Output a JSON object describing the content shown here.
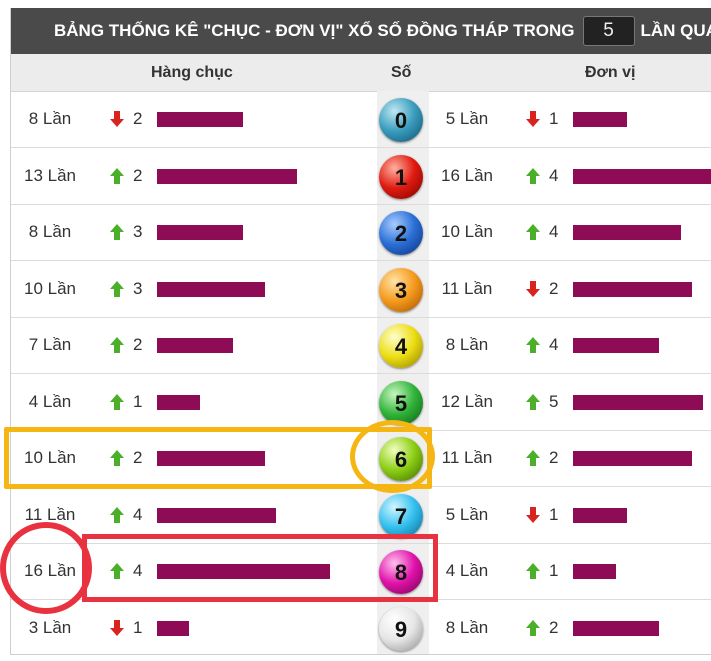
{
  "title": {
    "prefix": "BẢNG THỐNG KÊ \"CHỤC - ĐƠN VỊ\" XỔ SỐ ĐỒNG THÁP TRONG",
    "count_value": "5",
    "suffix": "LẦN QUAY"
  },
  "headers": {
    "tens": "Hàng chục",
    "digit": "Số",
    "units": "Đơn vị"
  },
  "rows": [
    {
      "digit": "0",
      "color": "teal",
      "tens": {
        "times": "8 Lần",
        "trend": "down",
        "change": "2",
        "level": 0.8
      },
      "units": {
        "times": "5 Lần",
        "trend": "down",
        "change": "1",
        "level": 0.5
      }
    },
    {
      "digit": "1",
      "color": "red",
      "tens": {
        "times": "13 Lần",
        "trend": "up",
        "change": "2",
        "level": 1.3
      },
      "units": {
        "times": "16 Lần",
        "trend": "up",
        "change": "4",
        "level": 1.6
      }
    },
    {
      "digit": "2",
      "color": "blue",
      "tens": {
        "times": "8 Lần",
        "trend": "up",
        "change": "3",
        "level": 0.8
      },
      "units": {
        "times": "10 Lần",
        "trend": "up",
        "change": "4",
        "level": 1.0
      }
    },
    {
      "digit": "3",
      "color": "orange",
      "tens": {
        "times": "10 Lần",
        "trend": "up",
        "change": "3",
        "level": 1.0
      },
      "units": {
        "times": "11 Lần",
        "trend": "down",
        "change": "2",
        "level": 1.1
      }
    },
    {
      "digit": "4",
      "color": "yellow",
      "tens": {
        "times": "7 Lần",
        "trend": "up",
        "change": "2",
        "level": 0.7
      },
      "units": {
        "times": "8 Lần",
        "trend": "up",
        "change": "4",
        "level": 0.8
      }
    },
    {
      "digit": "5",
      "color": "green",
      "tens": {
        "times": "4 Lần",
        "trend": "up",
        "change": "1",
        "level": 0.4
      },
      "units": {
        "times": "12 Lần",
        "trend": "up",
        "change": "5",
        "level": 1.2
      }
    },
    {
      "digit": "6",
      "color": "lime",
      "tens": {
        "times": "10 Lần",
        "trend": "up",
        "change": "2",
        "level": 1.0
      },
      "units": {
        "times": "11 Lần",
        "trend": "up",
        "change": "2",
        "level": 1.1
      }
    },
    {
      "digit": "7",
      "color": "cyan",
      "tens": {
        "times": "11 Lần",
        "trend": "up",
        "change": "4",
        "level": 1.1
      },
      "units": {
        "times": "5 Lần",
        "trend": "down",
        "change": "1",
        "level": 0.5
      }
    },
    {
      "digit": "8",
      "color": "magenta",
      "tens": {
        "times": "16 Lần",
        "trend": "up",
        "change": "4",
        "level": 1.6
      },
      "units": {
        "times": "4 Lần",
        "trend": "up",
        "change": "1",
        "level": 0.4
      }
    },
    {
      "digit": "9",
      "color": "white",
      "tens": {
        "times": "3 Lần",
        "trend": "down",
        "change": "1",
        "level": 0.3
      },
      "units": {
        "times": "8 Lần",
        "trend": "up",
        "change": "2",
        "level": 0.8
      }
    }
  ],
  "colors": {
    "bar": "#8e0c55",
    "arrow_up": "#4caf2a",
    "arrow_down": "#d9231e",
    "highlight_yellow": "#f5b512",
    "highlight_red": "#e8323f",
    "balls": {
      "teal": [
        "#bfe8f4",
        "#3a9cbd",
        "#0d4f6e"
      ],
      "red": [
        "#ffb0a0",
        "#e01b10",
        "#780000"
      ],
      "blue": [
        "#a9ccff",
        "#2a6fd6",
        "#0b2f7a"
      ],
      "orange": [
        "#ffe3a8",
        "#f59a1c",
        "#a05200"
      ],
      "yellow": [
        "#ffffd0",
        "#ecdd12",
        "#8f7d00"
      ],
      "green": [
        "#c8f6c0",
        "#31b43a",
        "#0c5a12"
      ],
      "lime": [
        "#f1ffc0",
        "#8cce14",
        "#3c6a00"
      ],
      "cyan": [
        "#d2f6ff",
        "#34c0ee",
        "#0a6690"
      ],
      "magenta": [
        "#ffc2ee",
        "#e112aa",
        "#70004d"
      ],
      "white": [
        "#ffffff",
        "#e6e6e6",
        "#8d8d8d"
      ]
    }
  }
}
